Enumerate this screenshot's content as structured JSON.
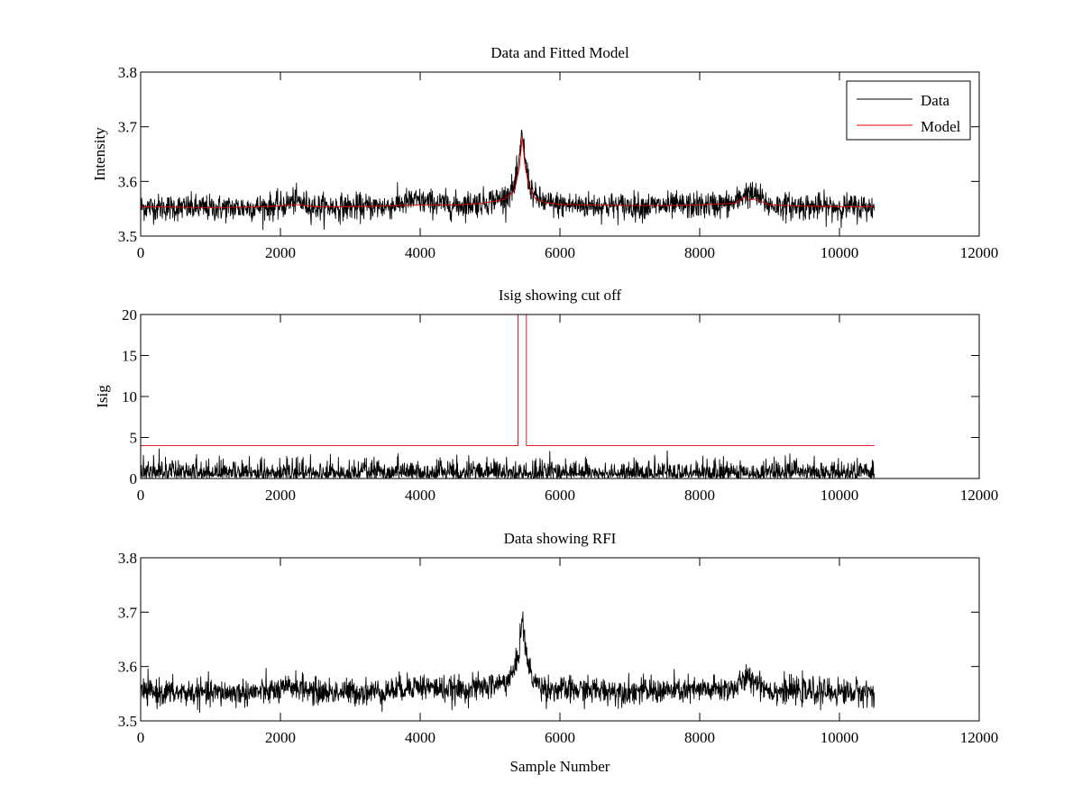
{
  "chart_data": [
    {
      "type": "line",
      "title": "Data and Fitted Model",
      "xlabel": "",
      "ylabel": "Intensity",
      "xlim": [
        0,
        12000
      ],
      "ylim": [
        3.5,
        3.8
      ],
      "xticks": [
        0,
        2000,
        4000,
        6000,
        8000,
        10000,
        12000
      ],
      "yticks": [
        3.5,
        3.6,
        3.7,
        3.8
      ],
      "yticklabels": [
        "3.5",
        "3.6",
        "3.7",
        "3.8"
      ],
      "legend": {
        "position": "top-right",
        "entries": [
          "Data",
          "Model"
        ]
      },
      "grid": false,
      "series": [
        {
          "name": "Data",
          "color": "#000000",
          "x_range": [
            0,
            10500
          ],
          "noise_sd": 0.012,
          "x": [
            0,
            500,
            1000,
            1500,
            2000,
            2200,
            2500,
            3000,
            3500,
            3900,
            4500,
            4900,
            5200,
            5350,
            5420,
            5460,
            5500,
            5560,
            5650,
            5800,
            6000,
            6500,
            7000,
            7500,
            8000,
            8500,
            8650,
            8800,
            9000,
            9500,
            10000,
            10500
          ],
          "y": [
            3.553,
            3.552,
            3.551,
            3.552,
            3.555,
            3.565,
            3.553,
            3.553,
            3.554,
            3.565,
            3.556,
            3.562,
            3.57,
            3.59,
            3.635,
            3.695,
            3.64,
            3.595,
            3.57,
            3.56,
            3.557,
            3.556,
            3.555,
            3.555,
            3.556,
            3.56,
            3.578,
            3.575,
            3.556,
            3.554,
            3.553,
            3.553
          ]
        },
        {
          "name": "Model",
          "color": "#e00000",
          "x": [
            0,
            500,
            1000,
            1500,
            2000,
            2200,
            2500,
            3000,
            3500,
            3900,
            4500,
            4900,
            5200,
            5350,
            5420,
            5460,
            5500,
            5560,
            5650,
            5800,
            6000,
            6500,
            7000,
            7500,
            8000,
            8500,
            8650,
            8700,
            8800,
            9000,
            9500,
            10000,
            10500
          ],
          "y": [
            3.554,
            3.553,
            3.552,
            3.553,
            3.555,
            3.558,
            3.554,
            3.554,
            3.555,
            3.557,
            3.557,
            3.56,
            3.567,
            3.583,
            3.625,
            3.68,
            3.628,
            3.588,
            3.568,
            3.561,
            3.558,
            3.557,
            3.556,
            3.556,
            3.557,
            3.56,
            3.572,
            3.566,
            3.568,
            3.557,
            3.555,
            3.554,
            3.554
          ]
        }
      ]
    },
    {
      "type": "line",
      "title": "Isig showing cut off",
      "xlabel": "",
      "ylabel": "Isig",
      "xlim": [
        0,
        12000
      ],
      "ylim": [
        0,
        20
      ],
      "xticks": [
        0,
        2000,
        4000,
        6000,
        8000,
        10000,
        12000
      ],
      "yticks": [
        0,
        5,
        10,
        15,
        20
      ],
      "yticklabels": [
        "0",
        "5",
        "10",
        "15",
        "20"
      ],
      "grid": false,
      "series": [
        {
          "color": "#000000",
          "kind": "abs-noise",
          "x_range": [
            0,
            10500
          ],
          "noise_sd": 1.0,
          "y_max": 3.6
        },
        {
          "color": "#e00000",
          "x": [
            0,
            5400,
            5400,
            5520,
            5520,
            10500
          ],
          "y": [
            4,
            4,
            20,
            20,
            4,
            4
          ]
        }
      ]
    },
    {
      "type": "line",
      "title": "Data showing RFI",
      "xlabel": "Sample Number",
      "ylabel": "",
      "xlim": [
        0,
        12000
      ],
      "ylim": [
        3.5,
        3.8
      ],
      "xticks": [
        0,
        2000,
        4000,
        6000,
        8000,
        10000,
        12000
      ],
      "yticks": [
        3.5,
        3.6,
        3.7,
        3.8
      ],
      "yticklabels": [
        "3.5",
        "3.6",
        "3.7",
        "3.8"
      ],
      "grid": false,
      "series": [
        {
          "color": "#000000",
          "x_range": [
            0,
            10500
          ],
          "noise_sd": 0.012,
          "x": [
            0,
            500,
            1000,
            1500,
            2000,
            2200,
            2500,
            3000,
            3500,
            3900,
            4500,
            4900,
            5200,
            5350,
            5420,
            5460,
            5500,
            5560,
            5650,
            5800,
            6000,
            6500,
            7000,
            7500,
            8000,
            8500,
            8650,
            8800,
            9000,
            9500,
            10000,
            10500
          ],
          "y": [
            3.553,
            3.552,
            3.551,
            3.552,
            3.555,
            3.565,
            3.553,
            3.553,
            3.554,
            3.565,
            3.556,
            3.562,
            3.57,
            3.59,
            3.635,
            3.695,
            3.64,
            3.595,
            3.57,
            3.56,
            3.557,
            3.556,
            3.555,
            3.555,
            3.556,
            3.56,
            3.578,
            3.575,
            3.556,
            3.554,
            3.553,
            3.553
          ]
        }
      ]
    }
  ]
}
